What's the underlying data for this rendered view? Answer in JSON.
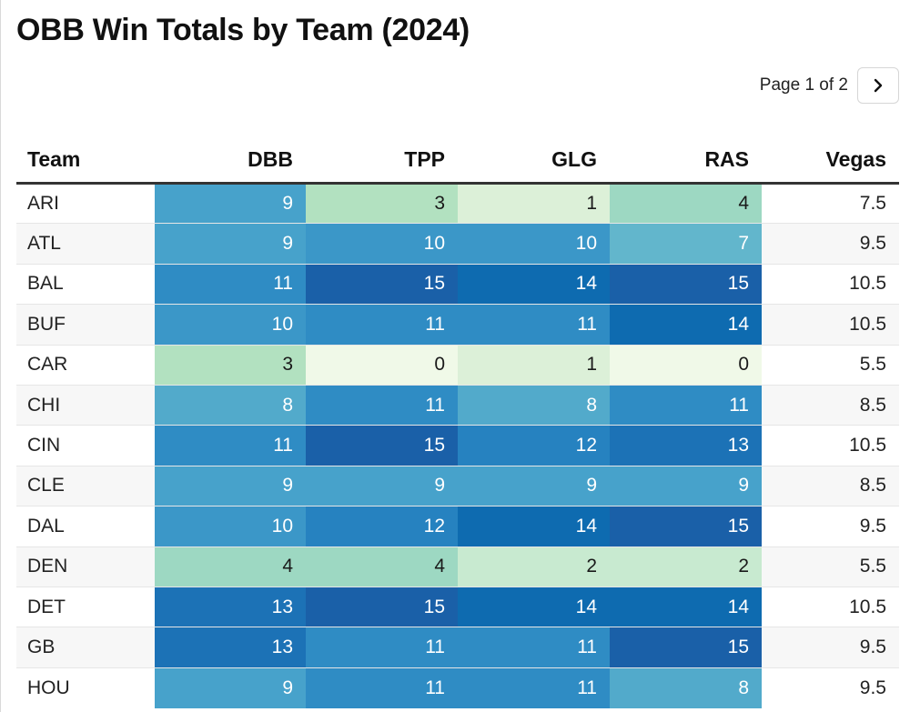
{
  "title": "OBB Win Totals by Team (2024)",
  "pagination": {
    "text": "Page 1 of 2",
    "next_icon": "chevron-right"
  },
  "columns": [
    "Team",
    "DBB",
    "TPP",
    "GLG",
    "RAS",
    "Vegas"
  ],
  "rows": [
    {
      "team": "ARI",
      "DBB": "9",
      "TPP": "3",
      "GLG": "1",
      "RAS": "4",
      "Vegas": "7.5"
    },
    {
      "team": "ATL",
      "DBB": "9",
      "TPP": "10",
      "GLG": "10",
      "RAS": "7",
      "Vegas": "9.5"
    },
    {
      "team": "BAL",
      "DBB": "11",
      "TPP": "15",
      "GLG": "14",
      "RAS": "15",
      "Vegas": "10.5"
    },
    {
      "team": "BUF",
      "DBB": "10",
      "TPP": "11",
      "GLG": "11",
      "RAS": "14",
      "Vegas": "10.5"
    },
    {
      "team": "CAR",
      "DBB": "3",
      "TPP": "0",
      "GLG": "1",
      "RAS": "0",
      "Vegas": "5.5"
    },
    {
      "team": "CHI",
      "DBB": "8",
      "TPP": "11",
      "GLG": "8",
      "RAS": "11",
      "Vegas": "8.5"
    },
    {
      "team": "CIN",
      "DBB": "11",
      "TPP": "15",
      "GLG": "12",
      "RAS": "13",
      "Vegas": "10.5"
    },
    {
      "team": "CLE",
      "DBB": "9",
      "TPP": "9",
      "GLG": "9",
      "RAS": "9",
      "Vegas": "8.5"
    },
    {
      "team": "DAL",
      "DBB": "10",
      "TPP": "12",
      "GLG": "14",
      "RAS": "15",
      "Vegas": "9.5"
    },
    {
      "team": "DEN",
      "DBB": "4",
      "TPP": "4",
      "GLG": "2",
      "RAS": "2",
      "Vegas": "5.5"
    },
    {
      "team": "DET",
      "DBB": "13",
      "TPP": "15",
      "GLG": "14",
      "RAS": "14",
      "Vegas": "10.5"
    },
    {
      "team": "GB",
      "DBB": "13",
      "TPP": "11",
      "GLG": "11",
      "RAS": "15",
      "Vegas": "9.5"
    },
    {
      "team": "HOU",
      "DBB": "9",
      "TPP": "11",
      "GLG": "11",
      "RAS": "8",
      "Vegas": "9.5"
    }
  ],
  "color_scale": {
    "0": "#f0f9e8",
    "1": "#dcf0d8",
    "2": "#c8ead0",
    "3": "#b2e1c0",
    "4": "#9dd8c2",
    "7": "#62b6cc",
    "8": "#52aacb",
    "9": "#47a2cb",
    "10": "#3b97c8",
    "11": "#2f8cc4",
    "12": "#2682c0",
    "13": "#1c72b6",
    "14": "#0e6bb0",
    "15": "#1a60a8"
  }
}
